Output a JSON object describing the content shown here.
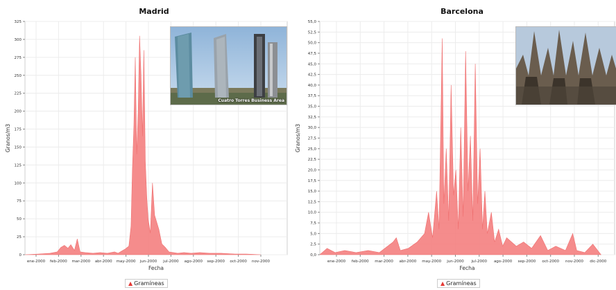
{
  "chart_data": [
    {
      "type": "area",
      "title": "Madrid",
      "xlabel": "Fecha",
      "ylabel": "Granos/m3",
      "ylim": [
        0,
        325
      ],
      "yticks": [
        0,
        25,
        50,
        75,
        100,
        125,
        150,
        175,
        200,
        225,
        250,
        275,
        300,
        325
      ],
      "ytick_labels": [
        "0",
        "25",
        "50",
        "75",
        "100",
        "125",
        "150",
        "175",
        "200",
        "225",
        "250",
        "275",
        "300",
        "325"
      ],
      "xtick_labels": [
        "ene-2000",
        "feb-2000",
        "mar-2000",
        "abr-2000",
        "may-2000",
        "jun-2000",
        "jul-2000",
        "ago-2000",
        "sep-2000",
        "oct-2000",
        "nov-2000"
      ],
      "grid": true,
      "legend": "bottom-center",
      "series": [
        {
          "name": "Gramíneas",
          "color": "#f48080",
          "points": [
            [
              "2000-01-01",
              0
            ],
            [
              "2000-01-20",
              1
            ],
            [
              "2000-02-05",
              2
            ],
            [
              "2000-02-15",
              4
            ],
            [
              "2000-02-20",
              10
            ],
            [
              "2000-02-25",
              13
            ],
            [
              "2000-03-01",
              9
            ],
            [
              "2000-03-05",
              14
            ],
            [
              "2000-03-10",
              6
            ],
            [
              "2000-03-14",
              22
            ],
            [
              "2000-03-18",
              4
            ],
            [
              "2000-03-25",
              3
            ],
            [
              "2000-04-05",
              2
            ],
            [
              "2000-04-15",
              3
            ],
            [
              "2000-04-25",
              2
            ],
            [
              "2000-05-05",
              4
            ],
            [
              "2000-05-10",
              2
            ],
            [
              "2000-05-15",
              5
            ],
            [
              "2000-05-20",
              8
            ],
            [
              "2000-05-25",
              12
            ],
            [
              "2000-05-28",
              40
            ],
            [
              "2000-05-30",
              120
            ],
            [
              "2000-06-01",
              180
            ],
            [
              "2000-06-03",
              275
            ],
            [
              "2000-06-05",
              140
            ],
            [
              "2000-06-07",
              200
            ],
            [
              "2000-06-09",
              305
            ],
            [
              "2000-06-11",
              250
            ],
            [
              "2000-06-13",
              165
            ],
            [
              "2000-06-15",
              285
            ],
            [
              "2000-06-17",
              130
            ],
            [
              "2000-06-19",
              80
            ],
            [
              "2000-06-21",
              50
            ],
            [
              "2000-06-24",
              30
            ],
            [
              "2000-06-27",
              100
            ],
            [
              "2000-06-30",
              55
            ],
            [
              "2000-07-03",
              45
            ],
            [
              "2000-07-06",
              35
            ],
            [
              "2000-07-10",
              15
            ],
            [
              "2000-07-15",
              10
            ],
            [
              "2000-07-20",
              4
            ],
            [
              "2000-08-01",
              2
            ],
            [
              "2000-08-10",
              3
            ],
            [
              "2000-08-20",
              2
            ],
            [
              "2000-09-01",
              3
            ],
            [
              "2000-09-15",
              2
            ],
            [
              "2000-10-01",
              2
            ],
            [
              "2000-10-20",
              1
            ],
            [
              "2000-11-05",
              1
            ],
            [
              "2000-11-25",
              0
            ]
          ]
        }
      ],
      "inset_image": {
        "subject": "skyscrapers",
        "caption": "Cuatro Torres Business Area"
      }
    },
    {
      "type": "area",
      "title": "Barcelona",
      "xlabel": "Fecha",
      "ylabel": "Granos/m3",
      "ylim": [
        0,
        55
      ],
      "yticks": [
        0,
        2.5,
        5,
        7.5,
        10,
        12.5,
        15,
        17.5,
        20,
        22.5,
        25,
        27.5,
        30,
        32.5,
        35,
        37.5,
        40,
        42.5,
        45,
        47.5,
        50,
        52.5,
        55
      ],
      "ytick_labels": [
        "0,0",
        "2,5",
        "5,0",
        "7,5",
        "10,0",
        "12,5",
        "15,0",
        "17,5",
        "20,0",
        "22,5",
        "25,0",
        "27,5",
        "30,0",
        "32,5",
        "35,0",
        "37,5",
        "40,0",
        "42,5",
        "45,0",
        "47,5",
        "50,0",
        "52,5",
        "55,0"
      ],
      "xtick_labels": [
        "ene-2000",
        "feb-2000",
        "mar-2000",
        "abr-2000",
        "may-2000",
        "jun-2000",
        "jul-2000",
        "ago-2000",
        "sep-2000",
        "oct-2000",
        "nov-2000",
        "dic-2000"
      ],
      "grid": true,
      "legend": "bottom-center",
      "series": [
        {
          "name": "Gramíneas",
          "color": "#f48080",
          "points": [
            [
              "2000-01-01",
              0
            ],
            [
              "2000-01-10",
              1.5
            ],
            [
              "2000-01-20",
              0.5
            ],
            [
              "2000-02-01",
              1
            ],
            [
              "2000-02-15",
              0.5
            ],
            [
              "2000-03-01",
              1
            ],
            [
              "2000-03-15",
              0.5
            ],
            [
              "2000-04-01",
              3
            ],
            [
              "2000-04-05",
              4
            ],
            [
              "2000-04-10",
              1
            ],
            [
              "2000-04-20",
              1.5
            ],
            [
              "2000-05-01",
              3
            ],
            [
              "2000-05-10",
              5
            ],
            [
              "2000-05-15",
              10
            ],
            [
              "2000-05-20",
              4
            ],
            [
              "2000-05-25",
              15
            ],
            [
              "2000-05-28",
              6
            ],
            [
              "2000-06-01",
              51
            ],
            [
              "2000-06-03",
              12
            ],
            [
              "2000-06-06",
              25
            ],
            [
              "2000-06-09",
              8
            ],
            [
              "2000-06-12",
              40
            ],
            [
              "2000-06-15",
              14
            ],
            [
              "2000-06-18",
              20
            ],
            [
              "2000-06-21",
              6
            ],
            [
              "2000-06-24",
              30
            ],
            [
              "2000-06-27",
              9
            ],
            [
              "2000-06-30",
              48
            ],
            [
              "2000-07-03",
              15
            ],
            [
              "2000-07-06",
              28
            ],
            [
              "2000-07-09",
              8
            ],
            [
              "2000-07-12",
              45
            ],
            [
              "2000-07-15",
              12
            ],
            [
              "2000-07-18",
              25
            ],
            [
              "2000-07-21",
              6
            ],
            [
              "2000-07-24",
              15
            ],
            [
              "2000-07-27",
              5
            ],
            [
              "2000-08-01",
              10
            ],
            [
              "2000-08-05",
              3
            ],
            [
              "2000-08-10",
              6
            ],
            [
              "2000-08-15",
              2
            ],
            [
              "2000-08-20",
              4
            ],
            [
              "2000-09-01",
              2
            ],
            [
              "2000-09-10",
              3
            ],
            [
              "2000-09-20",
              1.5
            ],
            [
              "2000-10-01",
              4.5
            ],
            [
              "2000-10-10",
              1
            ],
            [
              "2000-10-20",
              2
            ],
            [
              "2000-11-01",
              1
            ],
            [
              "2000-11-10",
              5
            ],
            [
              "2000-11-15",
              1
            ],
            [
              "2000-11-25",
              0.5
            ],
            [
              "2000-12-05",
              2.5
            ],
            [
              "2000-12-15",
              0
            ]
          ]
        }
      ],
      "inset_image": {
        "subject": "cathedral",
        "caption": ""
      }
    }
  ]
}
